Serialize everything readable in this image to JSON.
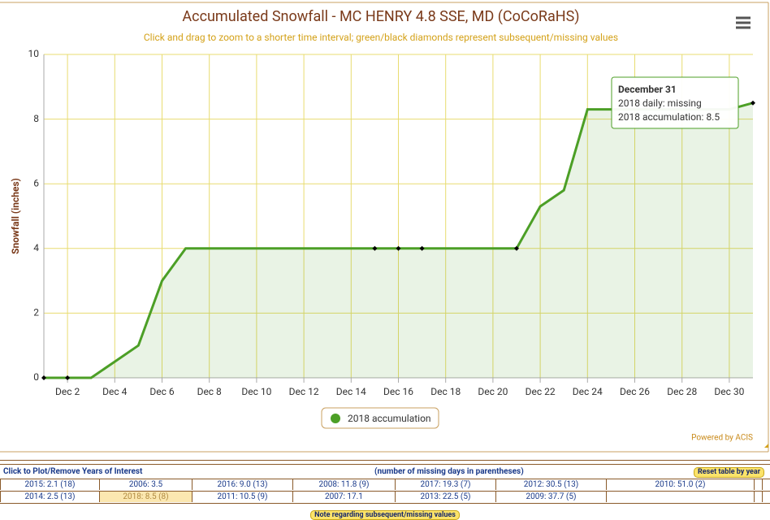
{
  "chart_data": {
    "type": "line",
    "title": "Accumulated Snowfall - MC HENRY 4.8 SSE, MD (CoCoRaHS)",
    "subtitle": "Click and drag to zoom to a shorter time interval; green/black diamonds represent subsequent/missing values",
    "y_label": "Snowfall (inches)",
    "categories": [
      null,
      "Dec 2",
      null,
      "Dec 4",
      null,
      "Dec 6",
      null,
      "Dec 8",
      null,
      "Dec 10",
      null,
      "Dec 12",
      null,
      "Dec 14",
      null,
      "Dec 16",
      null,
      "Dec 18",
      null,
      "Dec 20",
      null,
      "Dec 22",
      null,
      "Dec 24",
      null,
      "Dec 26",
      null,
      "Dec 28",
      null,
      "Dec 30",
      null
    ],
    "series": [
      {
        "name": "2018 accumulation",
        "color": "#4c9f26",
        "values": [
          0,
          0,
          0,
          0.5,
          1.0,
          3.0,
          4.0,
          4.0,
          4.0,
          4.0,
          4.0,
          4.0,
          4.0,
          4.0,
          4.0,
          4.0,
          4.0,
          4.0,
          4.0,
          4.0,
          4.0,
          5.3,
          5.8,
          8.3,
          8.3,
          8.3,
          8.3,
          8.3,
          8.3,
          8.3,
          8.5
        ]
      }
    ],
    "missing_markers": {
      "color": "#000000",
      "values": [
        0,
        0,
        null,
        null,
        null,
        null,
        null,
        null,
        null,
        null,
        null,
        null,
        null,
        null,
        4.0,
        4.0,
        4.0,
        null,
        null,
        null,
        4.0,
        null,
        null,
        null,
        null,
        null,
        null,
        null,
        null,
        null,
        8.5
      ]
    },
    "ylim": [
      0,
      10
    ],
    "yticks": [
      0,
      2,
      4,
      6,
      8,
      10
    ],
    "grid": true,
    "tooltip": {
      "title": "December 31",
      "lines": [
        "2018 daily: missing",
        "2018 accumulation: 8.5"
      ]
    },
    "credit": "Powered by ACIS"
  },
  "table": {
    "header_left": "Click to Plot/Remove Years of Interest",
    "header_center": "(number of missing days in parentheses)",
    "reset_button": "Reset table by year",
    "rows": [
      [
        "2015: 2.1 (18)",
        "2006: 3.5",
        "2016: 9.0 (13)",
        "2008: 11.8 (9)",
        "2017: 19.3 (7)",
        "2012: 30.5 (13)",
        "2010: 51.0 (2)"
      ],
      [
        "2014: 2.5 (13)",
        "2018: 8.5 (8)",
        "2011: 10.5 (9)",
        "2007: 17.1",
        "2013: 22.5 (5)",
        "2009: 37.7 (5)"
      ]
    ],
    "selected": "2018: 8.5 (8)",
    "note_button": "Note regarding subsequent/missing values"
  }
}
